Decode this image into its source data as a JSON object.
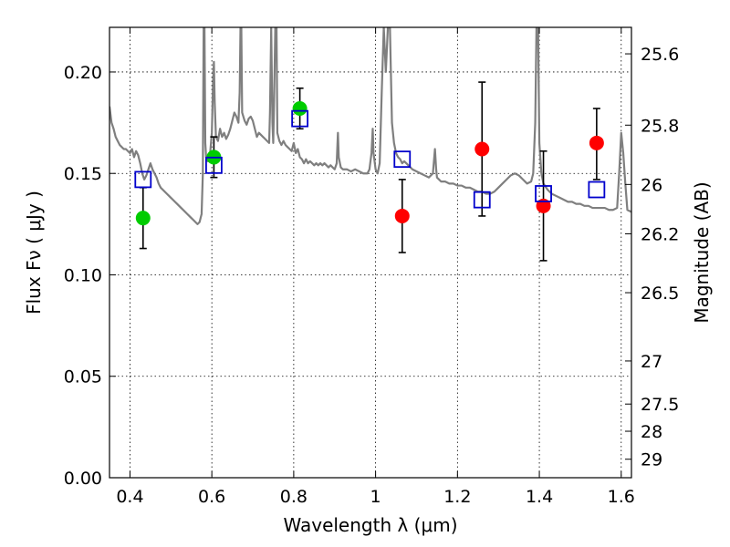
{
  "chart_data": {
    "type": "scatter",
    "xlabel": "Wavelength  λ (μm)",
    "ylabel": "Flux  Fν  ( μJy )",
    "ylabel_right": "Magnitude (AB)",
    "xlim": [
      0.35,
      1.625
    ],
    "ylim": [
      0.0,
      0.222
    ],
    "grid": true,
    "x_ticks": [
      {
        "value": 0.4,
        "label": "0.4"
      },
      {
        "value": 0.6,
        "label": "0.6"
      },
      {
        "value": 0.8,
        "label": "0.8"
      },
      {
        "value": 1.0,
        "label": "1"
      },
      {
        "value": 1.2,
        "label": "1.2"
      },
      {
        "value": 1.4,
        "label": "1.4"
      },
      {
        "value": 1.6,
        "label": "1.6"
      }
    ],
    "y_ticks": [
      {
        "value": 0.0,
        "label": "0.00"
      },
      {
        "value": 0.05,
        "label": "0.05"
      },
      {
        "value": 0.1,
        "label": "0.10"
      },
      {
        "value": 0.15,
        "label": "0.15"
      },
      {
        "value": 0.2,
        "label": "0.20"
      }
    ],
    "mag_ticks": [
      {
        "value": 25.6,
        "label": "25.6"
      },
      {
        "value": 25.8,
        "label": "25.8"
      },
      {
        "value": 26.0,
        "label": "26"
      },
      {
        "value": 26.2,
        "label": "26.2"
      },
      {
        "value": 26.5,
        "label": "26.5"
      },
      {
        "value": 27.0,
        "label": "27"
      },
      {
        "value": 27.5,
        "label": "27.5"
      },
      {
        "value": 28.0,
        "label": "28"
      },
      {
        "value": 29.0,
        "label": "29"
      }
    ],
    "model_spectrum": {
      "color": "#7f7f7f",
      "points": [
        [
          0.35,
          0.183
        ],
        [
          0.355,
          0.175
        ],
        [
          0.36,
          0.172
        ],
        [
          0.365,
          0.168
        ],
        [
          0.37,
          0.166
        ],
        [
          0.375,
          0.164
        ],
        [
          0.38,
          0.163
        ],
        [
          0.385,
          0.162
        ],
        [
          0.39,
          0.162
        ],
        [
          0.395,
          0.161
        ],
        [
          0.4,
          0.16
        ],
        [
          0.405,
          0.162
        ],
        [
          0.41,
          0.158
        ],
        [
          0.415,
          0.161
        ],
        [
          0.42,
          0.159
        ],
        [
          0.425,
          0.155
        ],
        [
          0.43,
          0.15
        ],
        [
          0.435,
          0.147
        ],
        [
          0.44,
          0.149
        ],
        [
          0.445,
          0.152
        ],
        [
          0.45,
          0.155
        ],
        [
          0.455,
          0.152
        ],
        [
          0.46,
          0.15
        ],
        [
          0.465,
          0.148
        ],
        [
          0.47,
          0.145
        ],
        [
          0.475,
          0.143
        ],
        [
          0.48,
          0.142
        ],
        [
          0.485,
          0.141
        ],
        [
          0.49,
          0.14
        ],
        [
          0.495,
          0.139
        ],
        [
          0.5,
          0.138
        ],
        [
          0.505,
          0.137
        ],
        [
          0.51,
          0.136
        ],
        [
          0.515,
          0.135
        ],
        [
          0.52,
          0.134
        ],
        [
          0.525,
          0.133
        ],
        [
          0.53,
          0.132
        ],
        [
          0.535,
          0.131
        ],
        [
          0.54,
          0.13
        ],
        [
          0.545,
          0.129
        ],
        [
          0.55,
          0.128
        ],
        [
          0.555,
          0.127
        ],
        [
          0.56,
          0.126
        ],
        [
          0.565,
          0.125
        ],
        [
          0.57,
          0.126
        ],
        [
          0.575,
          0.13
        ],
        [
          0.578,
          0.15
        ],
        [
          0.58,
          0.222
        ],
        [
          0.582,
          0.222
        ],
        [
          0.584,
          0.165
        ],
        [
          0.586,
          0.158
        ],
        [
          0.59,
          0.156
        ],
        [
          0.595,
          0.158
        ],
        [
          0.6,
          0.17
        ],
        [
          0.603,
          0.195
        ],
        [
          0.605,
          0.205
        ],
        [
          0.607,
          0.185
        ],
        [
          0.61,
          0.168
        ],
        [
          0.615,
          0.166
        ],
        [
          0.62,
          0.172
        ],
        [
          0.625,
          0.168
        ],
        [
          0.63,
          0.17
        ],
        [
          0.635,
          0.167
        ],
        [
          0.64,
          0.169
        ],
        [
          0.645,
          0.172
        ],
        [
          0.65,
          0.176
        ],
        [
          0.655,
          0.18
        ],
        [
          0.66,
          0.178
        ],
        [
          0.665,
          0.175
        ],
        [
          0.668,
          0.19
        ],
        [
          0.67,
          0.222
        ],
        [
          0.672,
          0.222
        ],
        [
          0.674,
          0.18
        ],
        [
          0.68,
          0.176
        ],
        [
          0.685,
          0.174
        ],
        [
          0.69,
          0.177
        ],
        [
          0.695,
          0.178
        ],
        [
          0.7,
          0.176
        ],
        [
          0.705,
          0.172
        ],
        [
          0.71,
          0.168
        ],
        [
          0.715,
          0.17
        ],
        [
          0.72,
          0.169
        ],
        [
          0.725,
          0.168
        ],
        [
          0.73,
          0.167
        ],
        [
          0.735,
          0.166
        ],
        [
          0.74,
          0.165
        ],
        [
          0.742,
          0.18
        ],
        [
          0.745,
          0.222
        ],
        [
          0.748,
          0.175
        ],
        [
          0.75,
          0.165
        ],
        [
          0.752,
          0.185
        ],
        [
          0.755,
          0.222
        ],
        [
          0.758,
          0.222
        ],
        [
          0.76,
          0.17
        ],
        [
          0.765,
          0.166
        ],
        [
          0.77,
          0.164
        ],
        [
          0.775,
          0.166
        ],
        [
          0.78,
          0.164
        ],
        [
          0.785,
          0.163
        ],
        [
          0.79,
          0.162
        ],
        [
          0.795,
          0.161
        ],
        [
          0.8,
          0.165
        ],
        [
          0.805,
          0.16
        ],
        [
          0.81,
          0.162
        ],
        [
          0.815,
          0.158
        ],
        [
          0.82,
          0.157
        ],
        [
          0.825,
          0.155
        ],
        [
          0.83,
          0.157
        ],
        [
          0.835,
          0.155
        ],
        [
          0.84,
          0.156
        ],
        [
          0.845,
          0.155
        ],
        [
          0.85,
          0.154
        ],
        [
          0.855,
          0.155
        ],
        [
          0.86,
          0.154
        ],
        [
          0.865,
          0.155
        ],
        [
          0.87,
          0.154
        ],
        [
          0.875,
          0.155
        ],
        [
          0.88,
          0.154
        ],
        [
          0.885,
          0.153
        ],
        [
          0.89,
          0.154
        ],
        [
          0.895,
          0.153
        ],
        [
          0.9,
          0.152
        ],
        [
          0.905,
          0.155
        ],
        [
          0.908,
          0.17
        ],
        [
          0.91,
          0.158
        ],
        [
          0.915,
          0.153
        ],
        [
          0.92,
          0.152
        ],
        [
          0.93,
          0.152
        ],
        [
          0.94,
          0.151
        ],
        [
          0.95,
          0.152
        ],
        [
          0.96,
          0.151
        ],
        [
          0.97,
          0.15
        ],
        [
          0.98,
          0.15
        ],
        [
          0.985,
          0.152
        ],
        [
          0.99,
          0.16
        ],
        [
          0.993,
          0.172
        ],
        [
          0.995,
          0.16
        ],
        [
          1.0,
          0.152
        ],
        [
          1.005,
          0.15
        ],
        [
          1.01,
          0.155
        ],
        [
          1.015,
          0.19
        ],
        [
          1.02,
          0.222
        ],
        [
          1.025,
          0.2
        ],
        [
          1.03,
          0.222
        ],
        [
          1.035,
          0.222
        ],
        [
          1.04,
          0.175
        ],
        [
          1.045,
          0.165
        ],
        [
          1.05,
          0.16
        ],
        [
          1.055,
          0.158
        ],
        [
          1.06,
          0.157
        ],
        [
          1.065,
          0.155
        ],
        [
          1.07,
          0.156
        ],
        [
          1.075,
          0.155
        ],
        [
          1.08,
          0.154
        ],
        [
          1.09,
          0.152
        ],
        [
          1.1,
          0.151
        ],
        [
          1.11,
          0.15
        ],
        [
          1.12,
          0.149
        ],
        [
          1.13,
          0.148
        ],
        [
          1.14,
          0.15
        ],
        [
          1.145,
          0.162
        ],
        [
          1.148,
          0.152
        ],
        [
          1.15,
          0.148
        ],
        [
          1.16,
          0.146
        ],
        [
          1.17,
          0.146
        ],
        [
          1.18,
          0.145
        ],
        [
          1.19,
          0.145
        ],
        [
          1.2,
          0.144
        ],
        [
          1.21,
          0.144
        ],
        [
          1.22,
          0.143
        ],
        [
          1.23,
          0.143
        ],
        [
          1.24,
          0.142
        ],
        [
          1.25,
          0.141
        ],
        [
          1.26,
          0.141
        ],
        [
          1.27,
          0.14
        ],
        [
          1.28,
          0.14
        ],
        [
          1.29,
          0.141
        ],
        [
          1.3,
          0.143
        ],
        [
          1.31,
          0.145
        ],
        [
          1.32,
          0.147
        ],
        [
          1.33,
          0.149
        ],
        [
          1.34,
          0.15
        ],
        [
          1.35,
          0.149
        ],
        [
          1.36,
          0.147
        ],
        [
          1.37,
          0.145
        ],
        [
          1.38,
          0.146
        ],
        [
          1.385,
          0.15
        ],
        [
          1.39,
          0.175
        ],
        [
          1.393,
          0.222
        ],
        [
          1.397,
          0.222
        ],
        [
          1.4,
          0.165
        ],
        [
          1.405,
          0.15
        ],
        [
          1.41,
          0.145
        ],
        [
          1.42,
          0.142
        ],
        [
          1.43,
          0.14
        ],
        [
          1.44,
          0.139
        ],
        [
          1.45,
          0.138
        ],
        [
          1.46,
          0.137
        ],
        [
          1.47,
          0.136
        ],
        [
          1.48,
          0.136
        ],
        [
          1.49,
          0.135
        ],
        [
          1.5,
          0.135
        ],
        [
          1.51,
          0.134
        ],
        [
          1.52,
          0.134
        ],
        [
          1.53,
          0.133
        ],
        [
          1.54,
          0.133
        ],
        [
          1.55,
          0.133
        ],
        [
          1.56,
          0.133
        ],
        [
          1.57,
          0.132
        ],
        [
          1.58,
          0.132
        ],
        [
          1.59,
          0.133
        ],
        [
          1.595,
          0.15
        ],
        [
          1.6,
          0.17
        ],
        [
          1.605,
          0.16
        ],
        [
          1.61,
          0.145
        ],
        [
          1.615,
          0.132
        ],
        [
          1.625,
          0.131
        ]
      ]
    },
    "series": [
      {
        "color": "#00cc00",
        "marker": "circle",
        "points": [
          {
            "x": 0.432,
            "y": 0.128,
            "yerr_low": 0.113,
            "yerr_high": 0.143
          },
          {
            "x": 0.605,
            "y": 0.158,
            "yerr_low": 0.148,
            "yerr_high": 0.168
          },
          {
            "x": 0.815,
            "y": 0.182,
            "yerr_low": 0.172,
            "yerr_high": 0.192
          }
        ]
      },
      {
        "color": "#ff0000",
        "marker": "circle",
        "points": [
          {
            "x": 1.065,
            "y": 0.129,
            "yerr_low": 0.111,
            "yerr_high": 0.147
          },
          {
            "x": 1.26,
            "y": 0.162,
            "yerr_low": 0.129,
            "yerr_high": 0.195
          },
          {
            "x": 1.41,
            "y": 0.134,
            "yerr_low": 0.107,
            "yerr_high": 0.161
          },
          {
            "x": 1.54,
            "y": 0.165,
            "yerr_low": 0.147,
            "yerr_high": 0.182
          }
        ]
      },
      {
        "color": "#0000cc",
        "marker": "open-square",
        "points": [
          {
            "x": 0.432,
            "y": 0.147
          },
          {
            "x": 0.605,
            "y": 0.154
          },
          {
            "x": 0.815,
            "y": 0.177
          },
          {
            "x": 1.065,
            "y": 0.157
          },
          {
            "x": 1.26,
            "y": 0.137
          },
          {
            "x": 1.41,
            "y": 0.14
          },
          {
            "x": 1.54,
            "y": 0.142
          }
        ]
      }
    ]
  }
}
